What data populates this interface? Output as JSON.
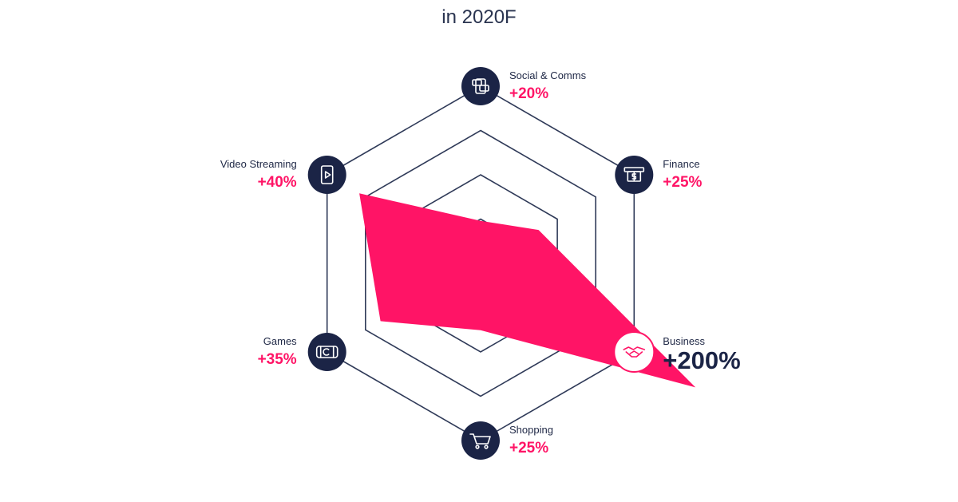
{
  "chart_data": {
    "type": "radar",
    "title": "",
    "subtitle": "in 2020F",
    "categories": [
      "Social & Comms",
      "Finance",
      "Business",
      "Shopping",
      "Games",
      "Video Streaming"
    ],
    "value_labels": [
      "+20%",
      "+25%",
      "+200%",
      "+25%",
      "+35%",
      "+40%"
    ],
    "values": [
      20,
      25,
      200,
      25,
      35,
      40
    ],
    "icons": [
      "chat-phone-icon",
      "atm-cash-icon",
      "handshake-icon",
      "shopping-cart-icon",
      "game-console-icon",
      "video-play-icon"
    ],
    "highlight_category": "Business",
    "grid_rings": 4,
    "grid": true,
    "legend": "none"
  },
  "colors": {
    "accent": "#ff1466",
    "navy": "#1b2446",
    "grid": "#2f3a58",
    "background": "#ffffff"
  }
}
